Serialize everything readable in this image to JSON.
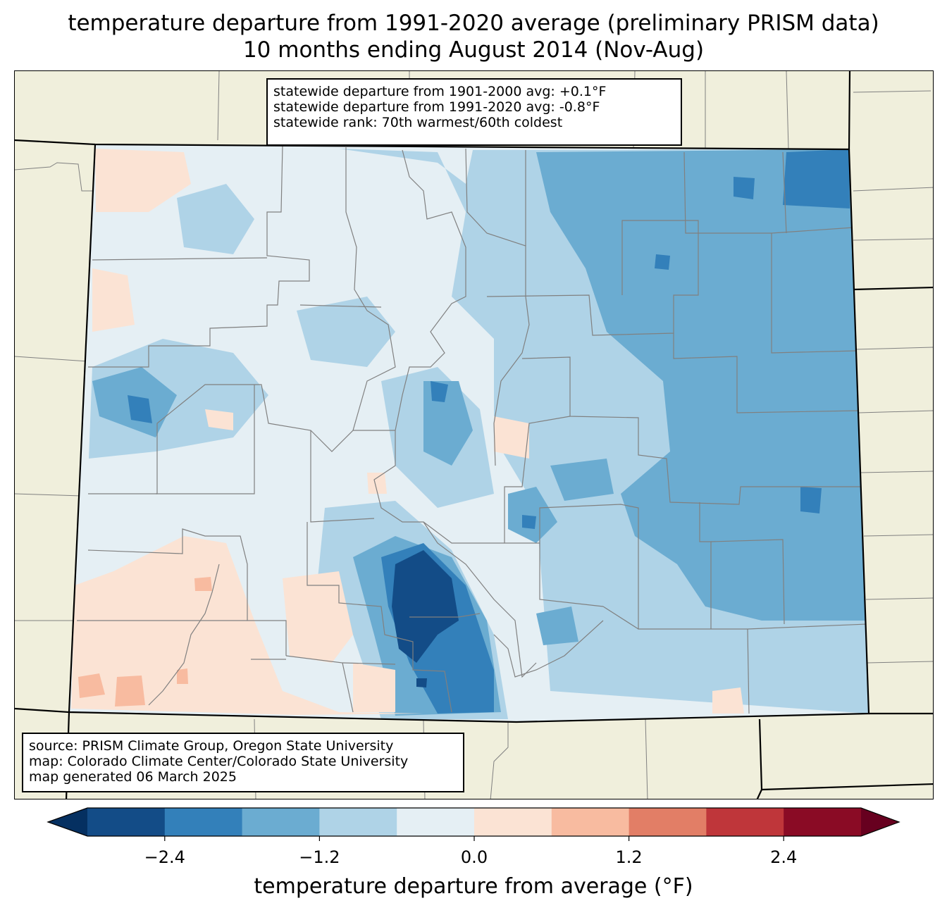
{
  "title": {
    "line1": "temperature departure from 1991-2020 average (preliminary PRISM data)",
    "line2": "10 months ending August 2014 (Nov-Aug)"
  },
  "stats": {
    "line1": "statewide departure from 1901-2000 avg: +0.1°F",
    "line2": "statewide departure from 1991-2020 avg: -0.8°F",
    "line3": "statewide rank: 70th warmest/60th coldest"
  },
  "source": {
    "line1": "source: PRISM Climate Group, Oregon State University",
    "line2": "map: Colorado Climate Center/Colorado State University",
    "line3": "map generated 06 March 2025"
  },
  "colorbar": {
    "label": "temperature departure from average (°F)",
    "ticks": [
      "−2.4",
      "−1.2",
      "0.0",
      "1.2",
      "2.4"
    ],
    "tick_values": [
      -2.4,
      -1.2,
      0.0,
      1.2,
      2.4
    ],
    "range": [
      -3.0,
      3.0
    ],
    "step": 0.6,
    "colors": [
      "#053061",
      "#134c87",
      "#3380ba",
      "#6bacd1",
      "#afd3e7",
      "#e5eff4",
      "#fbe3d4",
      "#f8bba0",
      "#e27e66",
      "#bf363a",
      "#8a0b25",
      "#67001f"
    ]
  },
  "map": {
    "background": "#f0efdc",
    "state_outline_color": "#000000",
    "county_line_color": "#808080"
  }
}
